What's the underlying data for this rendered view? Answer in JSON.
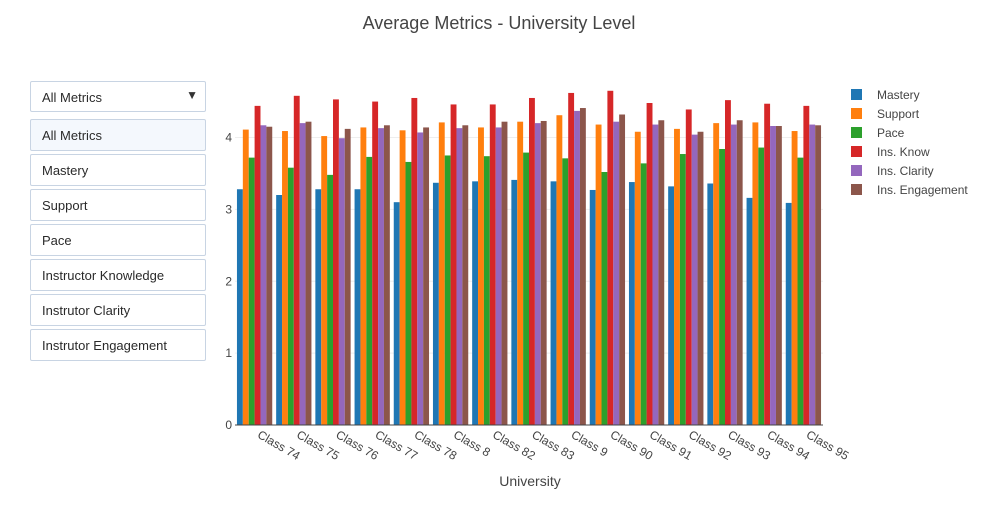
{
  "chart_data": {
    "type": "bar",
    "title": "Average Metrics - University Level",
    "xlabel": "University",
    "ylabel": "",
    "ylim": [
      0,
      4.8
    ],
    "yticks": [
      0,
      1,
      2,
      3,
      4
    ],
    "grid": true,
    "legend_position": "right",
    "categories": [
      "Class 74",
      "Class 75",
      "Class 76",
      "Class 77",
      "Class 78",
      "Class 8",
      "Class 82",
      "Class 83",
      "Class 9",
      "Class 90",
      "Class 91",
      "Class 92",
      "Class 93",
      "Class 94",
      "Class 95"
    ],
    "series": [
      {
        "name": "Mastery",
        "color": "#1f77b4",
        "values": [
          3.28,
          3.2,
          3.28,
          3.28,
          3.1,
          3.37,
          3.39,
          3.41,
          3.39,
          3.27,
          3.38,
          3.32,
          3.36,
          3.16,
          3.09
        ]
      },
      {
        "name": "Support",
        "color": "#ff7f0e",
        "values": [
          4.11,
          4.09,
          4.02,
          4.14,
          4.1,
          4.21,
          4.14,
          4.22,
          4.31,
          4.18,
          4.08,
          4.12,
          4.2,
          4.21,
          4.09
        ]
      },
      {
        "name": "Pace",
        "color": "#2ca02c",
        "values": [
          3.72,
          3.58,
          3.48,
          3.73,
          3.66,
          3.75,
          3.74,
          3.79,
          3.71,
          3.52,
          3.64,
          3.77,
          3.84,
          3.86,
          3.72
        ]
      },
      {
        "name": "Ins. Know",
        "color": "#d62728",
        "values": [
          4.44,
          4.58,
          4.53,
          4.5,
          4.55,
          4.46,
          4.46,
          4.55,
          4.62,
          4.65,
          4.48,
          4.39,
          4.52,
          4.47,
          4.44
        ]
      },
      {
        "name": "Ins. Clarity",
        "color": "#9467bd",
        "values": [
          4.17,
          4.2,
          3.99,
          4.13,
          4.07,
          4.13,
          4.14,
          4.2,
          4.37,
          4.22,
          4.18,
          4.04,
          4.18,
          4.16,
          4.18
        ]
      },
      {
        "name": "Ins. Engagement",
        "color": "#8c564b",
        "values": [
          4.15,
          4.22,
          4.12,
          4.17,
          4.14,
          4.17,
          4.22,
          4.23,
          4.41,
          4.32,
          4.24,
          4.08,
          4.24,
          4.16,
          4.17
        ]
      }
    ]
  },
  "dropdown": {
    "selected": "All Metrics",
    "options": [
      "All Metrics",
      "Mastery",
      "Support",
      "Pace",
      "Instructor Knowledge",
      "Instrutor Clarity",
      "Instrutor Engagement"
    ]
  }
}
